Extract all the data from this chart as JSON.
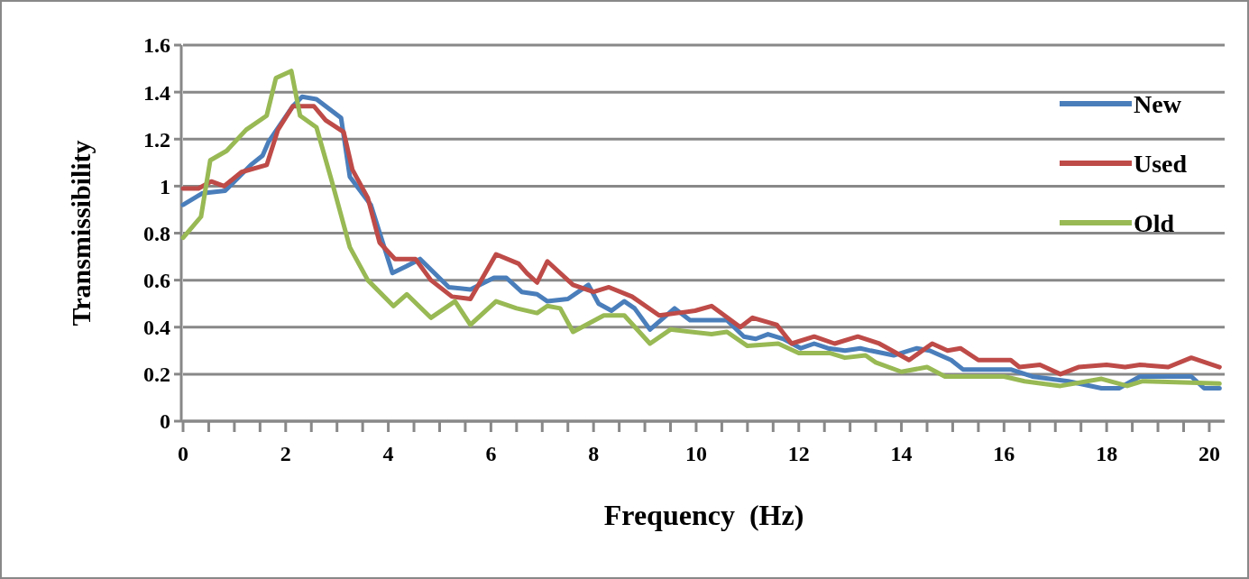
{
  "chart_data": {
    "type": "line",
    "xlabel": "Frequency  (Hz)",
    "ylabel": "Transmissibility",
    "xlim": [
      0,
      20.3
    ],
    "ylim": [
      0,
      1.6
    ],
    "xticks": [
      0,
      {
        "value": 0.5,
        "label": null
      },
      {
        "value": 1,
        "label": null
      },
      {
        "value": 1.5,
        "label": null
      },
      2,
      {
        "value": 2.5,
        "label": null
      },
      {
        "value": 3,
        "label": null
      },
      {
        "value": 3.5,
        "label": null
      },
      4,
      {
        "value": 4.5,
        "label": null
      },
      {
        "value": 5,
        "label": null
      },
      {
        "value": 5.5,
        "label": null
      },
      6,
      {
        "value": 6.5,
        "label": null
      },
      {
        "value": 7,
        "label": null
      },
      {
        "value": 7.5,
        "label": null
      },
      8,
      {
        "value": 8.5,
        "label": null
      },
      {
        "value": 9,
        "label": null
      },
      {
        "value": 9.5,
        "label": null
      },
      10,
      {
        "value": 10.5,
        "label": null
      },
      {
        "value": 11,
        "label": null
      },
      {
        "value": 11.5,
        "label": null
      },
      12,
      {
        "value": 12.5,
        "label": null
      },
      {
        "value": 13,
        "label": null
      },
      {
        "value": 13.5,
        "label": null
      },
      14,
      {
        "value": 14.5,
        "label": null
      },
      {
        "value": 15,
        "label": null
      },
      {
        "value": 15.5,
        "label": null
      },
      16,
      {
        "value": 16.5,
        "label": null
      },
      {
        "value": 17,
        "label": null
      },
      {
        "value": 17.5,
        "label": null
      },
      18,
      {
        "value": 18.5,
        "label": null
      },
      {
        "value": 19,
        "label": null
      },
      {
        "value": 19.5,
        "label": null
      },
      20
    ],
    "yticks": [
      0,
      0.2,
      0.4,
      0.6,
      0.8,
      1,
      1.2,
      1.4,
      1.6
    ],
    "grid": "y",
    "legend": "right",
    "marker": "none",
    "line_style": "solid",
    "series": [
      {
        "name": "New",
        "color": "#4a7ebb",
        "x": [
          0,
          0.38,
          0.82,
          1.32,
          1.55,
          1.67,
          2.14,
          2.32,
          2.6,
          3.08,
          3.25,
          3.66,
          4.08,
          4.36,
          4.62,
          5.18,
          5.6,
          6.06,
          6.3,
          6.6,
          6.9,
          7.1,
          7.5,
          7.9,
          8.1,
          8.35,
          8.6,
          8.8,
          9.1,
          9.58,
          9.88,
          10.6,
          10.93,
          11.16,
          11.4,
          11.7,
          12.04,
          12.3,
          12.57,
          12.9,
          13.2,
          13.4,
          13.85,
          14.3,
          14.55,
          14.97,
          15.2,
          15.55,
          16.13,
          16.55,
          17.25,
          17.9,
          18.24,
          18.65,
          19.65,
          19.9,
          20.2
        ],
        "values": [
          0.92,
          0.97,
          0.98,
          1.09,
          1.13,
          1.19,
          1.34,
          1.38,
          1.37,
          1.29,
          1.04,
          0.92,
          0.63,
          0.66,
          0.69,
          0.57,
          0.56,
          0.61,
          0.61,
          0.55,
          0.54,
          0.51,
          0.52,
          0.58,
          0.5,
          0.47,
          0.51,
          0.48,
          0.39,
          0.48,
          0.43,
          0.43,
          0.36,
          0.35,
          0.37,
          0.35,
          0.31,
          0.33,
          0.31,
          0.3,
          0.31,
          0.3,
          0.28,
          0.31,
          0.3,
          0.26,
          0.22,
          0.22,
          0.22,
          0.19,
          0.17,
          0.14,
          0.14,
          0.19,
          0.19,
          0.14,
          0.14
        ]
      },
      {
        "name": "Used",
        "color": "#be4b48",
        "x": [
          0,
          0.3,
          0.55,
          0.8,
          1.14,
          1.63,
          1.85,
          2.14,
          2.55,
          2.78,
          3.13,
          3.3,
          3.6,
          3.83,
          4.13,
          4.53,
          4.83,
          5.24,
          5.6,
          6.1,
          6.54,
          6.7,
          6.9,
          7.1,
          7.6,
          8,
          8.3,
          8.75,
          9.28,
          9.63,
          9.98,
          10.3,
          10.86,
          11.1,
          11.57,
          11.86,
          12.3,
          12.7,
          13.15,
          13.57,
          14.15,
          14.6,
          14.9,
          15.15,
          15.5,
          16.13,
          16.3,
          16.7,
          17.1,
          17.45,
          18,
          18.36,
          18.65,
          19.2,
          19.65,
          20.2
        ],
        "values": [
          0.99,
          0.99,
          1.02,
          1,
          1.06,
          1.09,
          1.24,
          1.34,
          1.34,
          1.28,
          1.23,
          1.07,
          0.95,
          0.76,
          0.69,
          0.69,
          0.6,
          0.53,
          0.52,
          0.71,
          0.67,
          0.63,
          0.59,
          0.68,
          0.58,
          0.55,
          0.57,
          0.53,
          0.45,
          0.46,
          0.47,
          0.49,
          0.4,
          0.44,
          0.41,
          0.33,
          0.36,
          0.33,
          0.36,
          0.33,
          0.26,
          0.33,
          0.3,
          0.31,
          0.26,
          0.26,
          0.23,
          0.24,
          0.2,
          0.23,
          0.24,
          0.23,
          0.24,
          0.23,
          0.27,
          0.23
        ]
      },
      {
        "name": "Old",
        "color": "#98b954",
        "x": [
          0,
          0.35,
          0.53,
          0.85,
          1.23,
          1.63,
          1.81,
          2.11,
          2.28,
          2.6,
          2.9,
          3.25,
          3.6,
          4.1,
          4.36,
          4.83,
          5.3,
          5.6,
          6.1,
          6.5,
          6.9,
          7.1,
          7.35,
          7.6,
          8.2,
          8.6,
          9.1,
          9.5,
          10.3,
          10.6,
          11,
          11.6,
          12,
          12.6,
          12.9,
          13.3,
          13.5,
          14,
          14.5,
          14.85,
          16,
          16.4,
          17.1,
          17.9,
          18.4,
          18.7,
          20.2
        ],
        "values": [
          0.78,
          0.87,
          1.11,
          1.15,
          1.24,
          1.3,
          1.46,
          1.49,
          1.3,
          1.25,
          1.02,
          0.74,
          0.6,
          0.49,
          0.54,
          0.44,
          0.51,
          0.41,
          0.51,
          0.48,
          0.46,
          0.49,
          0.48,
          0.38,
          0.45,
          0.45,
          0.33,
          0.39,
          0.37,
          0.38,
          0.32,
          0.33,
          0.29,
          0.29,
          0.27,
          0.28,
          0.25,
          0.21,
          0.23,
          0.19,
          0.19,
          0.17,
          0.15,
          0.18,
          0.15,
          0.17,
          0.16
        ]
      }
    ]
  }
}
